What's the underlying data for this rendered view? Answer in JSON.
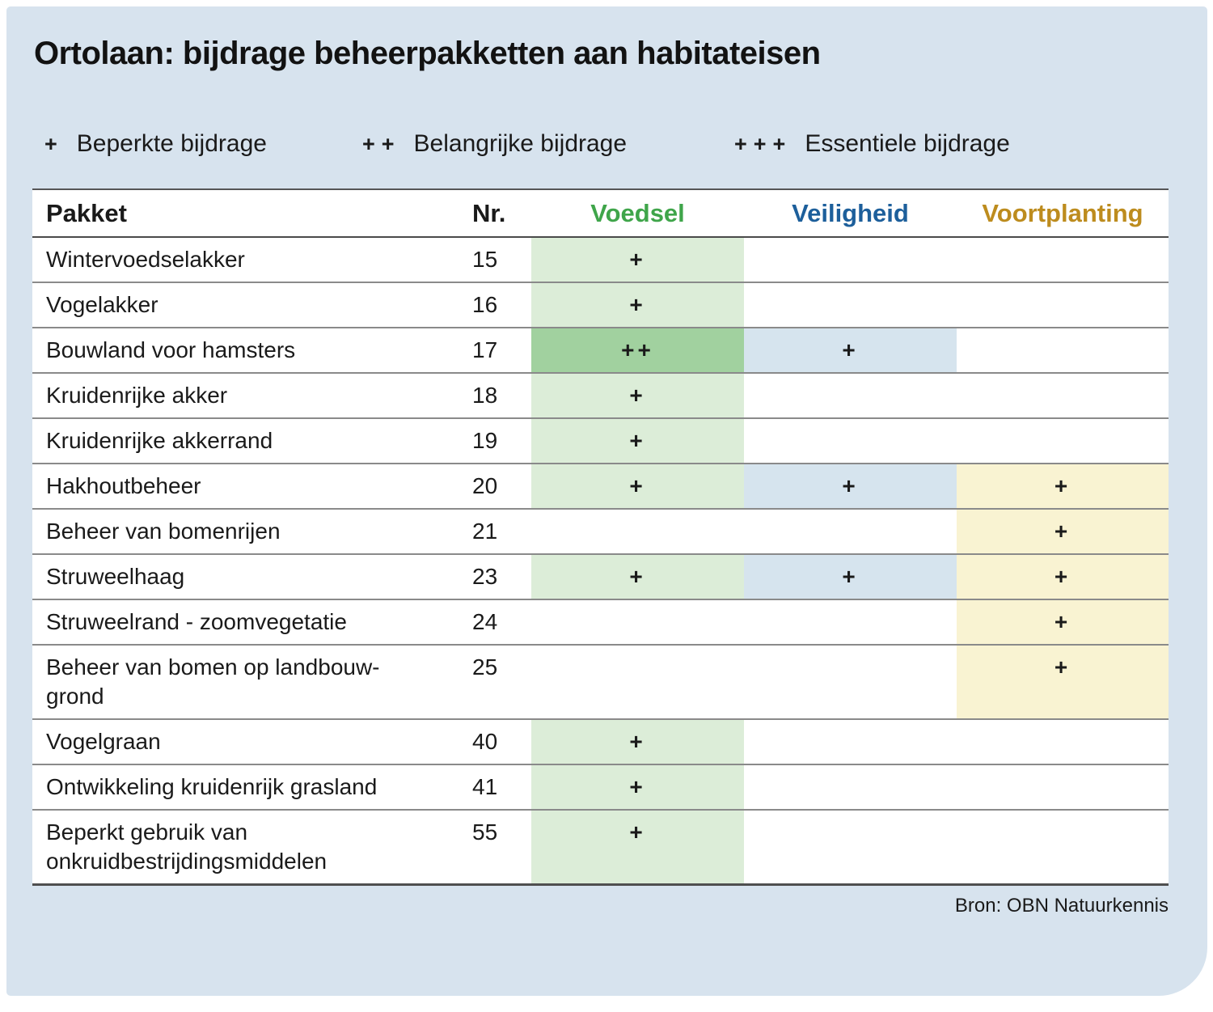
{
  "title": "Ortolaan: bijdrage beheerpakketten aan habitateisen",
  "legend": {
    "items": [
      {
        "symbol": "+",
        "label": "Beperkte bijdrage"
      },
      {
        "symbol": "++",
        "label": "Belangrijke bijdrage"
      },
      {
        "symbol": "+++",
        "label": "Essentiele bijdrage"
      }
    ]
  },
  "colors": {
    "panel_bg": "#d7e3ee",
    "voedsel_header": "#3fa54a",
    "veiligheid_header": "#1d5f9b",
    "voortplanting_header": "#bd8c1e",
    "voedsel_light": "#dcedd8",
    "voedsel_strong": "#a1d19f",
    "veiligheid_light": "#d6e4ee",
    "voortplanting_light": "#f9f3d2"
  },
  "chart_data": {
    "type": "table",
    "title": "Ortolaan: bijdrage beheerpakketten aan habitateisen",
    "legend_scale": {
      "+": "Beperkte bijdrage",
      "++": "Belangrijke bijdrage",
      "+++": "Essentiele bijdrage"
    },
    "columns": [
      "Pakket",
      "Nr.",
      "Voedsel",
      "Veiligheid",
      "Voortplanting"
    ],
    "rows": [
      [
        "Wintervoedselakker",
        "15",
        "+",
        "",
        ""
      ],
      [
        "Vogelakker",
        "16",
        "+",
        "",
        ""
      ],
      [
        "Bouwland voor hamsters",
        "17",
        "++",
        "+",
        ""
      ],
      [
        "Kruidenrijke akker",
        "18",
        "+",
        "",
        ""
      ],
      [
        "Kruidenrijke akkerrand",
        "19",
        "+",
        "",
        ""
      ],
      [
        "Hakhoutbeheer",
        "20",
        "+",
        "+",
        "+"
      ],
      [
        "Beheer van bomenrijen",
        "21",
        "",
        "",
        "+"
      ],
      [
        "Struweelhaag",
        "23",
        "+",
        "+",
        "+"
      ],
      [
        "Struweelrand - zoomvegetatie",
        "24",
        "",
        "",
        "+"
      ],
      [
        "Beheer van bomen op landbouwgrond",
        "25",
        "",
        "",
        "+"
      ],
      [
        "Vogelgraan",
        "40",
        "+",
        "",
        ""
      ],
      [
        "Ontwikkeling kruidenrijk grasland",
        "41",
        "+",
        "",
        ""
      ],
      [
        "Beperkt gebruik van onkruidbestrijdingsmiddelen",
        "55",
        "+",
        "",
        ""
      ]
    ]
  },
  "table": {
    "headers": {
      "pakket": "Pakket",
      "nr": "Nr.",
      "voedsel": "Voedsel",
      "veiligheid": "Veiligheid",
      "voortplanting": "Voortplanting"
    },
    "rows": [
      {
        "pakket": "Wintervoedselakker",
        "nr": "15",
        "voedsel": "+",
        "veiligheid": "",
        "voortplanting": ""
      },
      {
        "pakket": "Vogelakker",
        "nr": "16",
        "voedsel": "+",
        "veiligheid": "",
        "voortplanting": ""
      },
      {
        "pakket": "Bouwland voor hamsters",
        "nr": "17",
        "voedsel": "++",
        "veiligheid": "+",
        "voortplanting": ""
      },
      {
        "pakket": "Kruidenrijke akker",
        "nr": "18",
        "voedsel": "+",
        "veiligheid": "",
        "voortplanting": ""
      },
      {
        "pakket": "Kruidenrijke akkerrand",
        "nr": "19",
        "voedsel": "+",
        "veiligheid": "",
        "voortplanting": ""
      },
      {
        "pakket": "Hakhoutbeheer",
        "nr": "20",
        "voedsel": "+",
        "veiligheid": "+",
        "voortplanting": "+"
      },
      {
        "pakket": "Beheer van bomenrijen",
        "nr": "21",
        "voedsel": "",
        "veiligheid": "",
        "voortplanting": "+"
      },
      {
        "pakket": "Struweelhaag",
        "nr": "23",
        "voedsel": "+",
        "veiligheid": "+",
        "voortplanting": "+"
      },
      {
        "pakket": "Struweelrand - zoomvegetatie",
        "nr": "24",
        "voedsel": "",
        "veiligheid": "",
        "voortplanting": "+"
      },
      {
        "pakket": "Beheer van bomen op landbouw-\ngrond",
        "nr": "25",
        "voedsel": "",
        "veiligheid": "",
        "voortplanting": "+"
      },
      {
        "pakket": "Vogelgraan",
        "nr": "40",
        "voedsel": "+",
        "veiligheid": "",
        "voortplanting": ""
      },
      {
        "pakket": "Ontwikkeling kruidenrijk grasland",
        "nr": "41",
        "voedsel": "+",
        "veiligheid": "",
        "voortplanting": ""
      },
      {
        "pakket": "Beperkt gebruik van\nonkruidbestrijdingsmiddelen",
        "nr": "55",
        "voedsel": "+",
        "veiligheid": "",
        "voortplanting": ""
      }
    ]
  },
  "source": "Bron: OBN Natuurkennis"
}
